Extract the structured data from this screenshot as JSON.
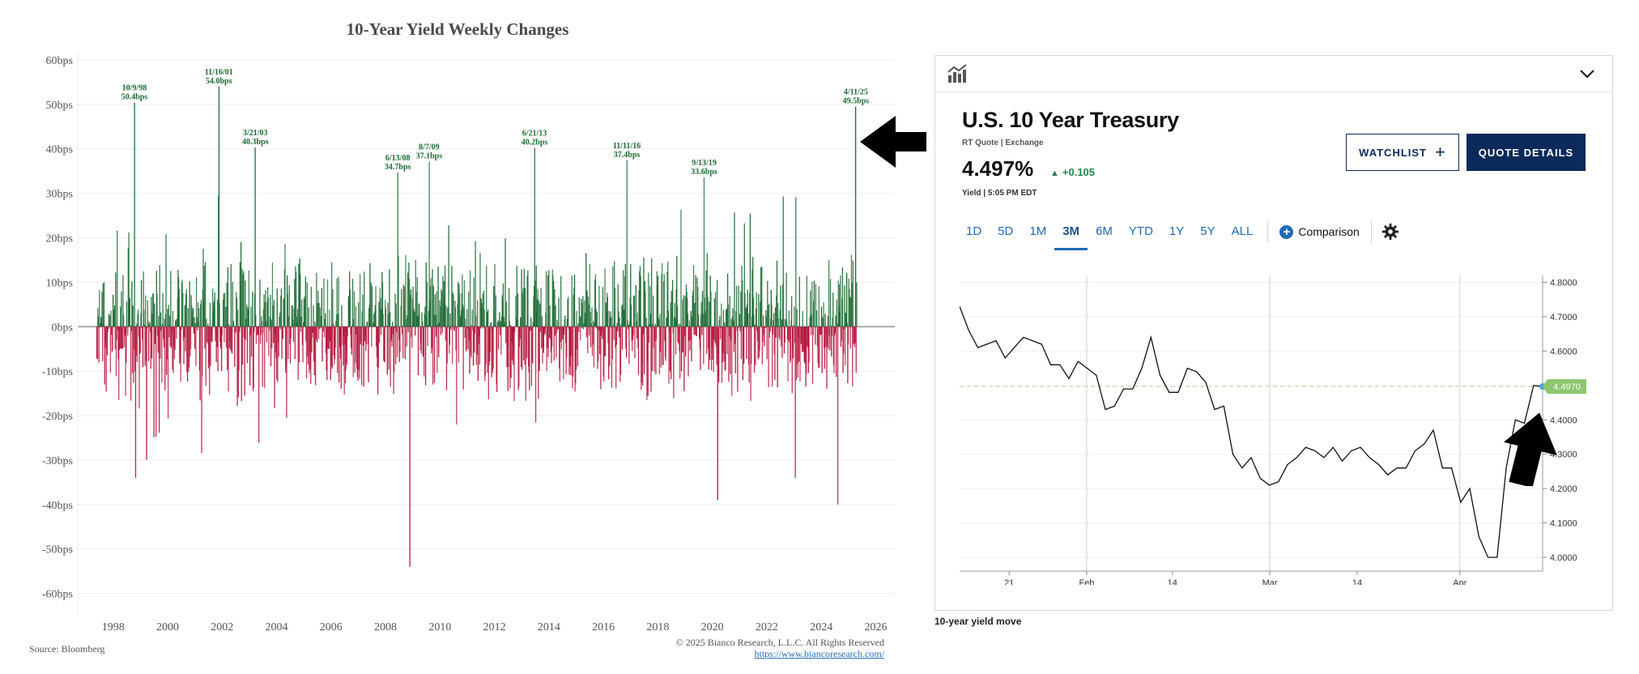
{
  "left_chart": {
    "title": "10-Year Yield Weekly Changes",
    "source": "Source: Bloomberg",
    "copyright": "© 2025 Bianco Research, L.L.C. All Rights Reserved",
    "url": "https://www.biancoresearch.com/",
    "colors": {
      "positive": "#1e6b34",
      "negative": "#b5163d",
      "zero_line": "#9a9a9a"
    }
  },
  "right_widget": {
    "instrument": "U.S. 10 Year Treasury",
    "quote_source": "RT Quote | Exchange",
    "price": "4.497%",
    "change": "+0.105",
    "change_direction": "up",
    "price_label": "Yield | 5:05 PM EDT",
    "watchlist_label": "WATCHLIST",
    "quote_details_label": "QUOTE DETAILS",
    "tabs": [
      {
        "label": "1D",
        "active": false
      },
      {
        "label": "5D",
        "active": false
      },
      {
        "label": "1M",
        "active": false
      },
      {
        "label": "3M",
        "active": true
      },
      {
        "label": "6M",
        "active": false
      },
      {
        "label": "YTD",
        "active": false
      },
      {
        "label": "1Y",
        "active": false
      },
      {
        "label": "5Y",
        "active": false
      },
      {
        "label": "ALL",
        "active": false
      }
    ],
    "comparison_label": "Comparison",
    "caption": "10-year yield move",
    "icons": {
      "chart": "chart-icon",
      "chevron": "chevron-down-icon",
      "settings": "gear-icon",
      "add": "plus-icon"
    },
    "colors": {
      "navy": "#0b2a5b",
      "link": "#2369b8",
      "up": "#1e8449",
      "last_value_tag": "#8cc66d"
    }
  },
  "chart_data": [
    {
      "type": "bar",
      "title": "10-Year Yield Weekly Changes",
      "xlabel": "",
      "ylabel": "",
      "unit": "bps",
      "x_ticks": [
        "1998",
        "2000",
        "2002",
        "2004",
        "2006",
        "2008",
        "2010",
        "2012",
        "2014",
        "2016",
        "2018",
        "2020",
        "2022",
        "2024",
        "2026"
      ],
      "y_ticks": [
        "60bps",
        "50bps",
        "40bps",
        "30bps",
        "20bps",
        "10bps",
        "0bps",
        "-10bps",
        "-20bps",
        "-30bps",
        "-40bps",
        "-50bps",
        "-60bps"
      ],
      "ylim": [
        -65,
        62
      ],
      "xlim": [
        1996.7,
        2026.7
      ],
      "x_start": 1997.4,
      "x_end": 2025.3,
      "grid": true,
      "legend": "none",
      "annotations": [
        {
          "date": "10/9/98",
          "value": "50.4bps",
          "x": 1998.78,
          "y": 50.4
        },
        {
          "date": "11/16/01",
          "value": "54.0bps",
          "x": 2001.88,
          "y": 54.0
        },
        {
          "date": "3/21/03",
          "value": "40.3bps",
          "x": 2003.22,
          "y": 40.3
        },
        {
          "date": "6/13/08",
          "value": "34.7bps",
          "x": 2008.45,
          "y": 34.7
        },
        {
          "date": "8/7/09",
          "value": "37.1bps",
          "x": 2009.6,
          "y": 37.1
        },
        {
          "date": "6/21/13",
          "value": "40.2bps",
          "x": 2013.47,
          "y": 40.2
        },
        {
          "date": "11/11/16",
          "value": "37.4bps",
          "x": 2016.86,
          "y": 37.4
        },
        {
          "date": "9/13/19",
          "value": "33.6bps",
          "x": 2019.7,
          "y": 33.6
        },
        {
          "date": "4/11/25",
          "value": "49.5bps",
          "x": 2025.27,
          "y": 49.5
        }
      ],
      "extreme_lows": [
        {
          "x": 1998.82,
          "y": -34
        },
        {
          "x": 2008.9,
          "y": -54
        },
        {
          "x": 2020.2,
          "y": -39
        },
        {
          "x": 2024.6,
          "y": -40
        },
        {
          "x": 2023.05,
          "y": -34
        }
      ]
    },
    {
      "type": "line",
      "title": "U.S. 10 Year Treasury",
      "x_ticks": [
        "21",
        "Feb",
        "14",
        "Mar",
        "14",
        "Apr"
      ],
      "y_ticks": [
        "4.8000",
        "4.7000",
        "4.6000",
        "4.5000",
        "4.4000",
        "4.3000",
        "4.2000",
        "4.1000",
        "4.0000"
      ],
      "ylim": [
        3.96,
        4.82
      ],
      "last_value": "4.4970",
      "grid": true,
      "legend": "none",
      "series": [
        {
          "values": [
            4.73,
            4.66,
            4.61,
            4.62,
            4.63,
            4.58,
            4.61,
            4.64,
            4.63,
            4.62,
            4.56,
            4.56,
            4.52,
            4.57,
            4.55,
            4.53,
            4.43,
            4.44,
            4.49,
            4.49,
            4.55,
            4.64,
            4.53,
            4.48,
            4.48,
            4.55,
            4.54,
            4.51,
            4.43,
            4.44,
            4.3,
            4.26,
            4.29,
            4.23,
            4.21,
            4.22,
            4.27,
            4.29,
            4.32,
            4.31,
            4.29,
            4.32,
            4.28,
            4.31,
            4.32,
            4.29,
            4.27,
            4.24,
            4.26,
            4.26,
            4.31,
            4.33,
            4.37,
            4.26,
            4.26,
            4.16,
            4.2,
            4.06,
            4.0,
            4.0,
            4.26,
            4.4,
            4.39,
            4.5,
            4.497
          ]
        }
      ]
    }
  ]
}
